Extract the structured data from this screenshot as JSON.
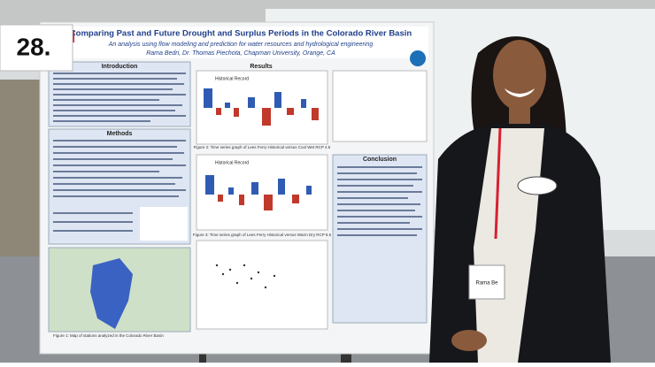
{
  "sign": "28.",
  "poster": {
    "title": "Comparing Past and Future Drought and Surplus Periods in the Colorado River Basin",
    "subtitle": "An analysis using flow modeling and prediction for water resources and hydrological engineering",
    "authors": "Rama Bedri, Dr. Thomas Piechota, Chapman University, Orange, CA",
    "sections": {
      "introduction": "Introduction",
      "results": "Results",
      "methods": "Methods",
      "conclusion": "Conclusion"
    },
    "chart_labels": [
      "Historical Record",
      "Historical Record"
    ],
    "captions": [
      "Figure 2: Time series graph of Lees Ferry Historical versus Cool Wet RCP 4.5",
      "Figure 3: Time series graph of Lees Ferry Historical versus Warm Dry RCP 8.5",
      "Figure 1: Map of stations analyzed in the Colorado River Basin"
    ]
  },
  "name_tag": "Rama Be"
}
